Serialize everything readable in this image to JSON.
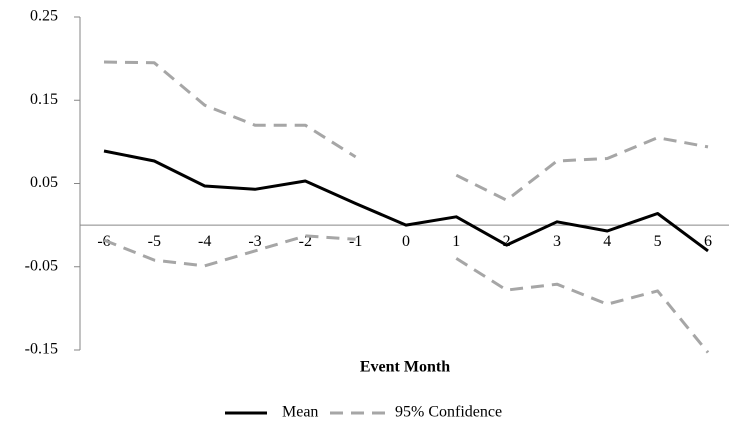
{
  "chart_data": {
    "type": "line",
    "x_label": "Event Month",
    "categories": [
      "-6",
      "-5",
      "-4",
      "-3",
      "-2",
      "-1",
      "0",
      "1",
      "2",
      "3",
      "4",
      "5",
      "6"
    ],
    "series": [
      {
        "name": "Mean",
        "color": "#000000",
        "dashed": false,
        "values": [
          0.089,
          0.077,
          0.047,
          0.043,
          0.053,
          0.026,
          0.0,
          0.01,
          -0.024,
          0.004,
          -0.007,
          0.014,
          -0.031
        ]
      },
      {
        "name": "95% Confidence",
        "color": "#a6a6a6",
        "dashed": true,
        "values": [
          0.196,
          0.195,
          0.144,
          0.12,
          0.12,
          0.082,
          null,
          0.06,
          0.03,
          0.077,
          0.08,
          0.105,
          0.094
        ],
        "values_lower": [
          -0.018,
          -0.042,
          -0.049,
          -0.031,
          -0.013,
          -0.017,
          null,
          -0.04,
          -0.078,
          -0.071,
          -0.095,
          -0.079,
          -0.153
        ]
      }
    ],
    "ylim": [
      -0.15,
      0.25
    ],
    "yticks": [
      -0.15,
      -0.05,
      0.05,
      0.15,
      0.25
    ],
    "legend": "bottom"
  }
}
